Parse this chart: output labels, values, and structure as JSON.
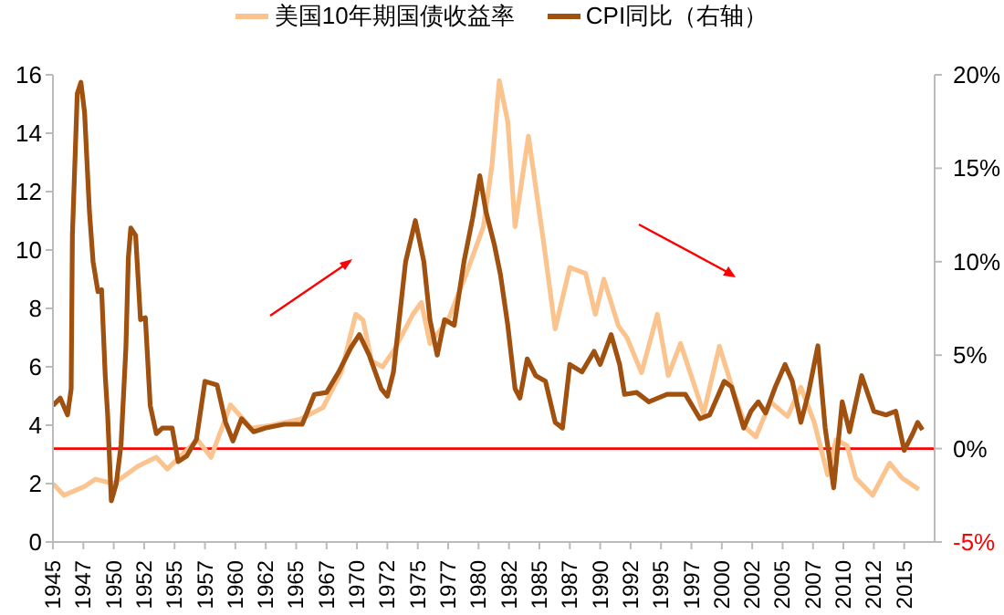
{
  "chart_data": {
    "type": "line",
    "legend": "top",
    "grid": false,
    "marker": "none",
    "line_style": "solid",
    "xlim": [
      1945,
      2017.5
    ],
    "xticks": [
      1945,
      {
        "value": 1947.5,
        "label": "1947"
      },
      1950,
      {
        "value": 1952.5,
        "label": "1952"
      },
      1955,
      {
        "value": 1957.5,
        "label": "1957"
      },
      1960,
      {
        "value": 1962.5,
        "label": "1962"
      },
      1965,
      {
        "value": 1967.5,
        "label": "1967"
      },
      1970,
      {
        "value": 1972.5,
        "label": "1972"
      },
      1975,
      {
        "value": 1977.5,
        "label": "1977"
      },
      1980,
      {
        "value": 1982.5,
        "label": "1982"
      },
      1985,
      {
        "value": 1987.5,
        "label": "1987"
      },
      1990,
      {
        "value": 1992.5,
        "label": "1992"
      },
      1995,
      {
        "value": 1997.5,
        "label": "1997"
      },
      2000,
      {
        "value": 2002.5,
        "label": "2002"
      },
      2005,
      {
        "value": 2007.5,
        "label": "2007"
      },
      2010,
      {
        "value": 2012.5,
        "label": "2012"
      },
      2015
    ],
    "ylim": [
      0,
      16
    ],
    "yticks": [
      0,
      2,
      4,
      6,
      8,
      10,
      12,
      14,
      16
    ],
    "y2lim": [
      -5,
      20
    ],
    "y2ticks": [
      {
        "value": -5,
        "label": "-5%"
      },
      {
        "value": 0,
        "label": "0%"
      },
      {
        "value": 5,
        "label": "5%"
      },
      {
        "value": 10,
        "label": "10%"
      },
      {
        "value": 15,
        "label": "15%"
      },
      {
        "value": 20,
        "label": "20%"
      }
    ],
    "ref_lines": [
      {
        "axis": "y2",
        "value": 0,
        "color": "#ff0000"
      }
    ],
    "series": [
      {
        "name": "美国10年期国债收益率",
        "color": "#fbc48f",
        "x": [
          1945,
          1945.9,
          1947.6,
          1948.5,
          1950,
          1952,
          1953.5,
          1954.4,
          1956.9,
          1958,
          1959.6,
          1961.3,
          1963,
          1965.3,
          1967.2,
          1968.7,
          1969.9,
          1970.5,
          1971.2,
          1972.1,
          1973.1,
          1974.6,
          1975.3,
          1976,
          1977.5,
          1979,
          1980.4,
          1981.1,
          1981.7,
          1982.4,
          1983,
          1984.1,
          1985.3,
          1986.3,
          1987.5,
          1988.8,
          1989.6,
          1990.3,
          1991.5,
          1992.2,
          1993.4,
          1994.7,
          1995.6,
          1996.6,
          1997.8,
          1998.5,
          1999.8,
          2001,
          2002,
          2002.8,
          2004,
          2005.4,
          2006.5,
          2007.6,
          2008.7,
          2009.4,
          2010.3,
          2011,
          2012.4,
          2013.8,
          2014.8,
          2016.2
        ],
        "values": [
          2.0,
          1.6,
          1.9,
          2.15,
          2.0,
          2.6,
          2.9,
          2.5,
          3.5,
          2.9,
          4.7,
          3.9,
          4.0,
          4.2,
          4.6,
          5.8,
          7.8,
          7.6,
          6.2,
          6.0,
          6.6,
          7.8,
          8.2,
          6.8,
          7.6,
          9.2,
          10.8,
          12.9,
          15.8,
          14.4,
          10.8,
          13.9,
          10.4,
          7.3,
          9.4,
          9.2,
          7.8,
          9.0,
          7.4,
          7.0,
          5.8,
          7.8,
          5.7,
          6.8,
          5.3,
          4.4,
          6.7,
          5.1,
          3.9,
          3.6,
          4.8,
          4.3,
          5.3,
          4.1,
          2.3,
          3.5,
          3.3,
          2.2,
          1.6,
          2.7,
          2.2,
          1.8
        ]
      },
      {
        "name": "CPI同比（右轴）",
        "color": "#a0500f",
        "axis": "y2",
        "x": [
          1945,
          1945.6,
          1946.2,
          1946.5,
          1946.6,
          1947.0,
          1947.3,
          1947.6,
          1948.0,
          1948.3,
          1948.7,
          1949.0,
          1949.3,
          1949.5,
          1949.8,
          1950.2,
          1950.6,
          1951.0,
          1951.2,
          1951.4,
          1951.8,
          1952.2,
          1952.6,
          1953,
          1953.5,
          1954,
          1954.8,
          1955.3,
          1956,
          1956.8,
          1957.5,
          1958.5,
          1959.2,
          1959.8,
          1960.5,
          1961.5,
          1962.5,
          1964,
          1965.5,
          1966.5,
          1967.5,
          1968.5,
          1969.5,
          1970.2,
          1971,
          1972,
          1972.5,
          1973,
          1974,
          1974.8,
          1975.5,
          1976,
          1976.6,
          1977.2,
          1978,
          1978.8,
          1979.5,
          1980.1,
          1980.6,
          1981.3,
          1981.8,
          1982.4,
          1983,
          1983.4,
          1984,
          1984.7,
          1985.5,
          1986.3,
          1986.9,
          1987.5,
          1988.5,
          1989.5,
          1990,
          1990.9,
          1991.6,
          1992,
          1993,
          1994,
          1995.5,
          1997,
          1998.2,
          1999,
          2000.2,
          2000.8,
          2001.8,
          2002.4,
          2003,
          2003.6,
          2004.4,
          2005.2,
          2005.8,
          2006.5,
          2007.1,
          2007.9,
          2008.5,
          2009.2,
          2009.9,
          2010.5,
          2011.5,
          2012.5,
          2013.5,
          2014.3,
          2015,
          2015.7,
          2016.1,
          2016.5
        ],
        "values": [
          2.3,
          2.7,
          1.8,
          3.2,
          11.4,
          19.0,
          19.6,
          18.0,
          12.7,
          10.0,
          8.4,
          8.5,
          3.9,
          1.8,
          -2.8,
          -1.9,
          0.2,
          5.4,
          10.2,
          11.8,
          11.4,
          6.9,
          7.0,
          2.3,
          0.8,
          1.1,
          1.1,
          -0.7,
          -0.4,
          0.5,
          3.6,
          3.4,
          1.4,
          0.4,
          1.6,
          0.9,
          1.1,
          1.3,
          1.3,
          2.9,
          3.0,
          4.1,
          5.4,
          6.1,
          5.0,
          3.2,
          2.8,
          4.1,
          10.0,
          12.2,
          10.0,
          6.9,
          5.0,
          6.9,
          6.6,
          10.0,
          12.3,
          14.6,
          12.7,
          10.9,
          9.3,
          6.6,
          3.2,
          2.7,
          4.8,
          3.9,
          3.6,
          1.4,
          1.1,
          4.5,
          4.1,
          5.2,
          4.5,
          6.1,
          4.5,
          2.9,
          3.0,
          2.5,
          2.9,
          2.9,
          1.6,
          1.8,
          3.6,
          3.3,
          1.1,
          2.0,
          2.5,
          1.9,
          3.3,
          4.5,
          3.6,
          1.4,
          2.9,
          5.5,
          1.1,
          -2.1,
          2.5,
          0.9,
          3.9,
          2.0,
          1.8,
          2.0,
          -0.1,
          0.8,
          1.4,
          1.0
        ]
      }
    ]
  }
}
